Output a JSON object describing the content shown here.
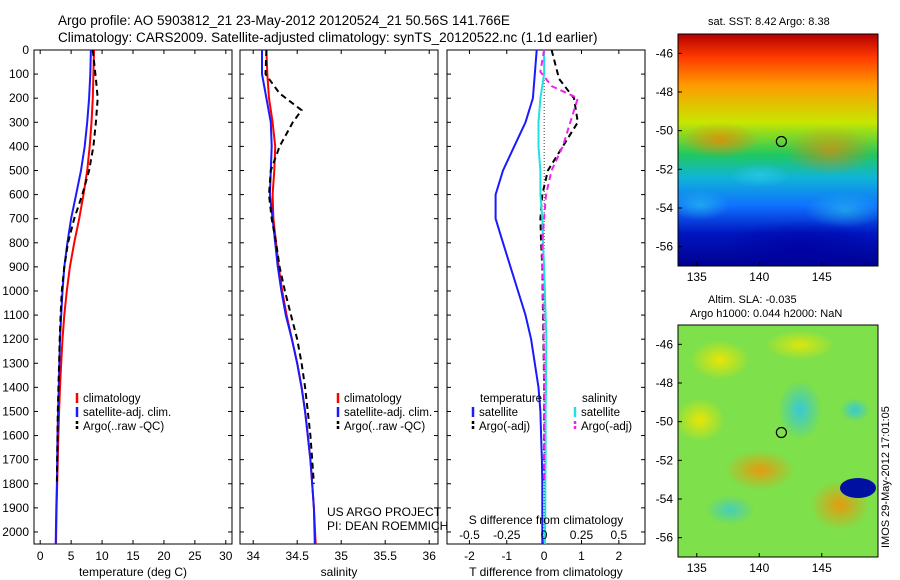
{
  "header": {
    "line1": "Argo profile: AO 5903812_21 23-May-2012 20120524_21 50.56S 141.766E",
    "line2": "Climatology: CARS2009. Satellite-adjusted climatology: synTS_20120522.nc (1.1d earlier)"
  },
  "colors": {
    "climatology": "#ff0000",
    "satellite": "#1a1aff",
    "argo": "#000000",
    "sat_salinity": "#22e0e0",
    "argo_salinity": "#ee22ee"
  },
  "chart_data": [
    {
      "id": "temperature",
      "type": "line",
      "xlabel": "temperature (deg C)",
      "ylabel": "",
      "xlim": [
        -1,
        31
      ],
      "ylim": [
        2050,
        0
      ],
      "xticks": [
        0,
        5,
        10,
        15,
        20,
        25,
        30
      ],
      "yticks": [
        0,
        100,
        200,
        300,
        400,
        500,
        600,
        700,
        800,
        900,
        1000,
        1100,
        1200,
        1300,
        1400,
        1500,
        1600,
        1700,
        1800,
        1900,
        2000
      ],
      "legend": [
        "climatology",
        "satellite-adj. clim.",
        "Argo(..raw -QC)"
      ],
      "series": [
        {
          "name": "climatology",
          "style": "solid",
          "color": "#ff0000",
          "x": [
            8.7,
            8.6,
            8.5,
            8.3,
            8.0,
            7.6,
            7.0,
            6.3,
            5.5,
            4.8,
            4.3,
            3.9,
            3.6,
            3.4,
            3.2,
            3.05,
            2.95,
            2.85,
            2.75,
            2.65,
            2.55
          ],
          "y": [
            0,
            100,
            200,
            300,
            400,
            500,
            600,
            700,
            800,
            900,
            1000,
            1100,
            1200,
            1300,
            1400,
            1500,
            1600,
            1700,
            1800,
            1900,
            2050
          ]
        },
        {
          "name": "satellite-adj. clim.",
          "style": "solid",
          "color": "#1a1aff",
          "x": [
            8.2,
            8.1,
            7.9,
            7.6,
            7.2,
            6.6,
            5.8,
            5.0,
            4.4,
            3.9,
            3.6,
            3.4,
            3.2,
            3.1,
            3.0,
            2.9,
            2.8,
            2.75,
            2.7,
            2.6,
            2.5
          ],
          "y": [
            0,
            100,
            200,
            300,
            400,
            500,
            600,
            700,
            800,
            900,
            1000,
            1100,
            1200,
            1300,
            1400,
            1500,
            1600,
            1700,
            1800,
            1900,
            2050
          ]
        },
        {
          "name": "Argo(..raw -QC)",
          "style": "dashed",
          "color": "#000000",
          "x": [
            8.5,
            9.0,
            9.3,
            9.0,
            8.6,
            7.9,
            6.8,
            5.5,
            4.5,
            3.9,
            3.5,
            3.3,
            3.15,
            3.05,
            2.95,
            2.85,
            2.8,
            2.75,
            2.7
          ],
          "y": [
            0,
            120,
            200,
            300,
            400,
            500,
            600,
            700,
            800,
            900,
            1000,
            1100,
            1200,
            1300,
            1400,
            1500,
            1600,
            1700,
            1800
          ]
        }
      ]
    },
    {
      "id": "salinity",
      "type": "line",
      "xlabel": "salinity",
      "ylabel": "",
      "xlim": [
        33.85,
        36.1
      ],
      "ylim": [
        2050,
        0
      ],
      "xticks": [
        34,
        34.5,
        35,
        35.5,
        36
      ],
      "legend": [
        "climatology",
        "satellite-adj. clim.",
        "Argo(..raw -QC)"
      ],
      "series": [
        {
          "name": "climatology",
          "style": "solid",
          "color": "#ff0000",
          "x": [
            34.15,
            34.16,
            34.18,
            34.22,
            34.25,
            34.24,
            34.22,
            34.23,
            34.26,
            34.29,
            34.33,
            34.38,
            34.44,
            34.5,
            34.55,
            34.59,
            34.62,
            34.65,
            34.67,
            34.69,
            34.71
          ],
          "y": [
            0,
            100,
            200,
            300,
            400,
            500,
            600,
            700,
            800,
            900,
            1000,
            1100,
            1200,
            1300,
            1400,
            1500,
            1600,
            1700,
            1800,
            1900,
            2050
          ]
        },
        {
          "name": "satellite-adj. clim.",
          "style": "solid",
          "color": "#1a1aff",
          "x": [
            34.1,
            34.1,
            34.15,
            34.2,
            34.21,
            34.2,
            34.19,
            34.22,
            34.25,
            34.28,
            34.32,
            34.37,
            34.44,
            34.5,
            34.55,
            34.59,
            34.62,
            34.65,
            34.67,
            34.69,
            34.7
          ],
          "y": [
            0,
            100,
            200,
            300,
            400,
            500,
            600,
            700,
            800,
            900,
            1000,
            1100,
            1200,
            1300,
            1400,
            1500,
            1600,
            1700,
            1800,
            1900,
            2050
          ]
        },
        {
          "name": "Argo(..raw -QC)",
          "style": "dashed",
          "color": "#000000",
          "x": [
            34.15,
            34.14,
            34.3,
            34.55,
            34.45,
            34.3,
            34.2,
            34.18,
            34.21,
            34.26,
            34.3,
            34.36,
            34.43,
            34.5,
            34.55,
            34.59,
            34.62,
            34.65,
            34.67,
            34.69
          ],
          "y": [
            0,
            100,
            180,
            250,
            300,
            400,
            500,
            600,
            700,
            800,
            900,
            1000,
            1100,
            1200,
            1300,
            1400,
            1500,
            1600,
            1700,
            1800
          ]
        }
      ],
      "annotation": [
        "US ARGO PROJECT",
        "PI: DEAN ROEMMICH"
      ]
    },
    {
      "id": "difference",
      "type": "line",
      "xlabel": "T difference from climatology",
      "xlabel2": "S difference from climatology",
      "xlim": [
        -2.6,
        2.7
      ],
      "ylim": [
        2050,
        0
      ],
      "xticks": [
        -2,
        -1,
        0,
        1,
        2
      ],
      "xticklabels": [
        "-2",
        "-1",
        "0",
        "1",
        "2"
      ],
      "sticks": [
        -2,
        -1,
        0,
        1,
        2
      ],
      "sticklabels": [
        "-0.5",
        "-0.25",
        "0",
        "0.25",
        "0.5"
      ],
      "legend_headers": [
        "temperature",
        "salinity"
      ],
      "legend": [
        "satellite",
        "Argo(-adj)",
        "satellite",
        "Argo(-adj)"
      ],
      "series": [
        {
          "name": "satellite",
          "group": "temperature",
          "style": "solid",
          "color": "#1a1aff",
          "x": [
            -0.2,
            -0.25,
            -0.3,
            -0.5,
            -0.8,
            -1.1,
            -1.3,
            -1.3,
            -1.1,
            -0.9,
            -0.7,
            -0.5,
            -0.35,
            -0.25,
            -0.15,
            -0.1,
            -0.08,
            -0.06,
            -0.05,
            -0.05,
            -0.05
          ],
          "y": [
            0,
            100,
            200,
            300,
            400,
            500,
            600,
            700,
            800,
            900,
            1000,
            1100,
            1200,
            1300,
            1400,
            1500,
            1600,
            1700,
            1800,
            1900,
            2050
          ]
        },
        {
          "name": "Argo(-adj)",
          "group": "temperature",
          "style": "dashed",
          "color": "#000000",
          "x": [
            0.2,
            0.4,
            0.8,
            0.9,
            0.5,
            0.1,
            -0.05,
            -0.1,
            -0.08,
            -0.05,
            -0.04,
            -0.03,
            -0.02,
            -0.01,
            0.0,
            0.0,
            0.0,
            0.0,
            0.0
          ],
          "y": [
            0,
            120,
            200,
            300,
            400,
            500,
            600,
            700,
            800,
            900,
            1000,
            1100,
            1200,
            1300,
            1400,
            1500,
            1600,
            1700,
            1800
          ]
        },
        {
          "name": "satellite",
          "group": "salinity",
          "style": "solid",
          "color": "#22e0e0",
          "x": [
            0.0,
            0.0,
            -0.1,
            -0.15,
            -0.15,
            -0.1,
            -0.1,
            -0.05,
            -0.03,
            0.0,
            0.02,
            0.04,
            0.06,
            0.05,
            0.05,
            0.04,
            0.04,
            0.04,
            0.03,
            0.03,
            0.02
          ],
          "y": [
            0,
            100,
            200,
            300,
            400,
            500,
            600,
            700,
            800,
            900,
            1000,
            1100,
            1200,
            1300,
            1400,
            1500,
            1600,
            1700,
            1800,
            1900,
            2050
          ]
        },
        {
          "name": "Argo(-adj)",
          "group": "salinity",
          "style": "dashed",
          "color": "#ee22ee",
          "x": [
            0.0,
            -0.1,
            0.2,
            0.9,
            0.7,
            0.5,
            0.2,
            0.05,
            0.0,
            -0.05,
            -0.05,
            -0.03,
            -0.02,
            -0.01,
            0.0,
            0.0,
            0.0,
            0.0,
            0.0,
            0.0
          ],
          "y": [
            0,
            90,
            150,
            200,
            300,
            400,
            500,
            600,
            700,
            800,
            900,
            1000,
            1100,
            1200,
            1300,
            1400,
            1500,
            1600,
            1700,
            1800
          ]
        }
      ]
    },
    {
      "id": "sst_map",
      "type": "heatmap",
      "title": "sat. SST: 8.42  Argo: 8.38",
      "xticks": [
        135,
        140,
        145
      ],
      "yticks": [
        -46,
        -48,
        -50,
        -52,
        -54,
        -56
      ],
      "xlim": [
        133.5,
        149.5
      ],
      "ylim": [
        -57,
        -45
      ],
      "marker": {
        "lon": 141.77,
        "lat": -50.56
      }
    },
    {
      "id": "sla_map",
      "type": "heatmap",
      "title": "Altim. SLA: -0.035",
      "subtitle": "Argo h1000: 0.044 h2000: NaN",
      "xticks": [
        135,
        140,
        145
      ],
      "yticks": [
        -46,
        -48,
        -50,
        -52,
        -54,
        -56
      ],
      "xlim": [
        133.5,
        149.5
      ],
      "ylim": [
        -57,
        -45
      ],
      "marker": {
        "lon": 141.77,
        "lat": -50.56
      }
    }
  ],
  "credit": "IMOS 29-May-2012 17:01:05"
}
